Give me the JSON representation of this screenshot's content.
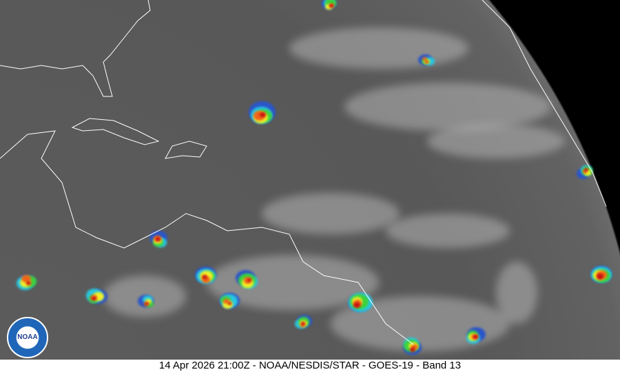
{
  "caption": "14 Apr 2026 21:00Z - NOAA/NESDIS/STAR - GOES-19 - Band 13",
  "logo": {
    "text": "NOAA"
  },
  "colors": {
    "space": "#000000",
    "ocean_ir": "#5c5c5c",
    "clouds": "#c8c8c8",
    "coastlines": "#ffffff",
    "convection": [
      "#2b55c9",
      "#28c8e0",
      "#3cd23c",
      "#f0f028",
      "#f06418",
      "#c81414",
      "#501010"
    ]
  }
}
